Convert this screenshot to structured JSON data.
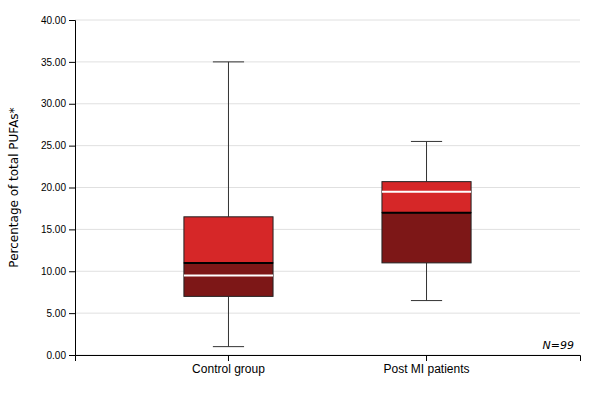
{
  "chart_data": {
    "type": "box",
    "categories": [
      "Control group",
      "Post MI patients"
    ],
    "boxes": [
      {
        "whisker_low": 1.0,
        "q1": 7.0,
        "median": 11.0,
        "mean": 9.5,
        "q3": 16.5,
        "whisker_high": 35.0
      },
      {
        "whisker_low": 6.5,
        "q1": 11.0,
        "median": 17.0,
        "mean": 19.5,
        "q3": 20.7,
        "whisker_high": 25.5
      }
    ],
    "ylabel": "Percentage of total PUFAs*",
    "ylim": [
      0,
      40
    ],
    "yticks": [
      {
        "value": 0.0,
        "label": "0.00"
      },
      {
        "value": 5.0,
        "label": "5.00"
      },
      {
        "value": 10.0,
        "label": "10.00"
      },
      {
        "value": 15.0,
        "label": "15.00"
      },
      {
        "value": 20.0,
        "label": "20.00"
      },
      {
        "value": 25.0,
        "label": "25.00"
      },
      {
        "value": 30.0,
        "label": "30.00"
      },
      {
        "value": 35.0,
        "label": "35.00"
      },
      {
        "value": 40.0,
        "label": "40.00"
      }
    ],
    "grid": true,
    "annotation": "N=99"
  }
}
